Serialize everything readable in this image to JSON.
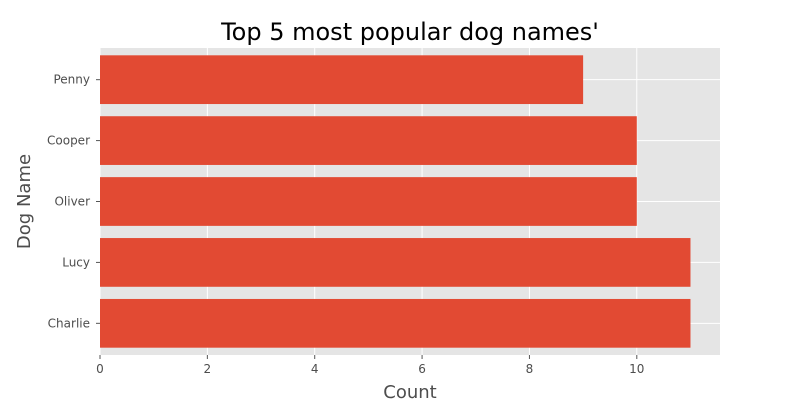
{
  "chart_data": {
    "type": "bar",
    "orientation": "horizontal",
    "title": "Top 5 most popular dog names'",
    "xlabel": "Count",
    "ylabel": "Dog Name",
    "categories": [
      "Charlie",
      "Lucy",
      "Oliver",
      "Cooper",
      "Penny"
    ],
    "values": [
      11,
      11,
      10,
      10,
      9
    ],
    "xlim": [
      0,
      11.55
    ],
    "xticks": [
      0,
      2,
      4,
      6,
      8,
      10
    ],
    "grid": true,
    "colors": {
      "bar": "#E24A33",
      "plot_background": "#E5E5E5",
      "grid": "#FFFFFF"
    }
  }
}
